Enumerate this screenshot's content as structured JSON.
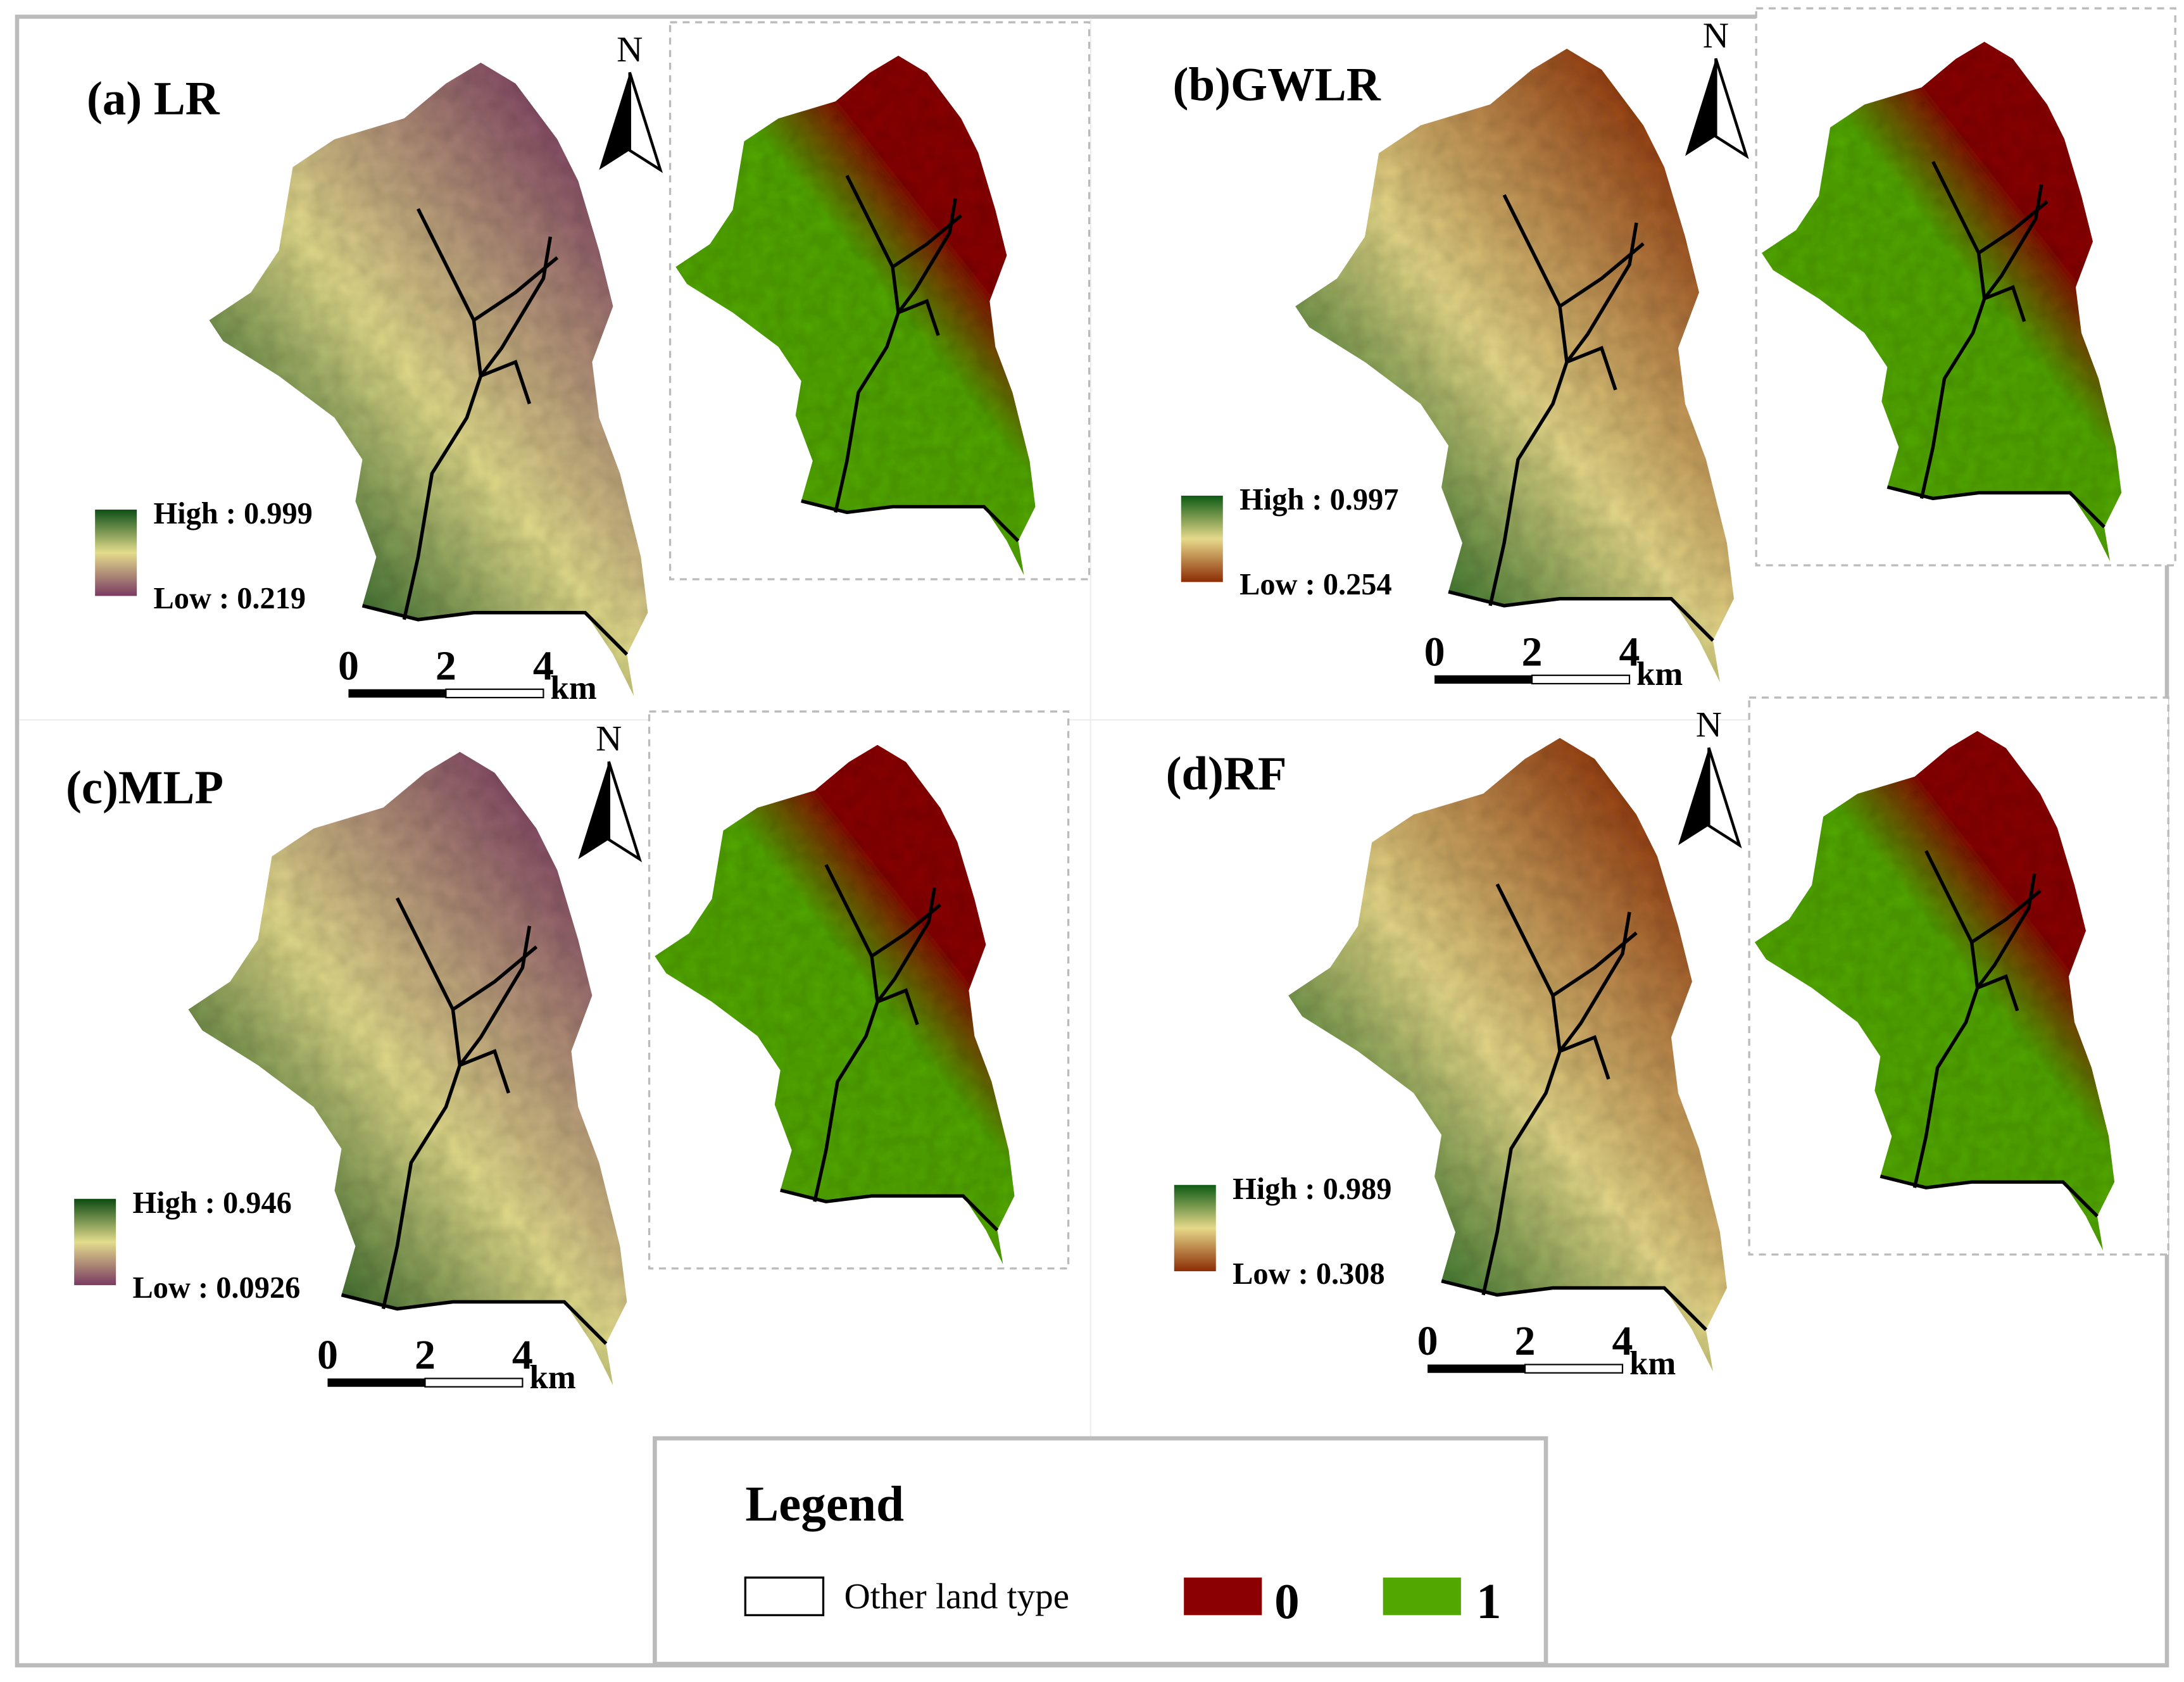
{
  "panels": [
    {
      "title": "(a) LR",
      "high": "High : 0.999",
      "low": "Low : 0.219",
      "north": "N",
      "scale": [
        "0",
        "2",
        "4"
      ],
      "unit": "km",
      "ramp": [
        "#0d4f16",
        "#e3dc8c",
        "#7a3a62"
      ]
    },
    {
      "title": "(b)GWLR",
      "high": "High : 0.997",
      "low": "Low : 0.254",
      "north": "N",
      "scale": [
        "0",
        "2",
        "4"
      ],
      "unit": "km",
      "ramp": [
        "#0d5a14",
        "#e6d98a",
        "#8c2c05"
      ]
    },
    {
      "title": "(c)MLP",
      "high": "High : 0.946",
      "low": "Low : 0.0926",
      "north": "N",
      "scale": [
        "0",
        "2",
        "4"
      ],
      "unit": "km",
      "ramp": [
        "#0c4a12",
        "#e3dc8c",
        "#7a3a62"
      ]
    },
    {
      "title": "(d)RF",
      "high": "High : 0.989",
      "low": "Low : 0.308",
      "north": "N",
      "scale": [
        "0",
        "2",
        "4"
      ],
      "unit": "km",
      "ramp": [
        "#0d5a14",
        "#e6d98a",
        "#8c2c05"
      ]
    }
  ],
  "legend": {
    "title": "Legend",
    "items": [
      {
        "label": "Other land type",
        "color": "#ffffff"
      },
      {
        "label": "0",
        "color": "#8b0000"
      },
      {
        "label": "1",
        "color": "#52a800"
      }
    ]
  }
}
